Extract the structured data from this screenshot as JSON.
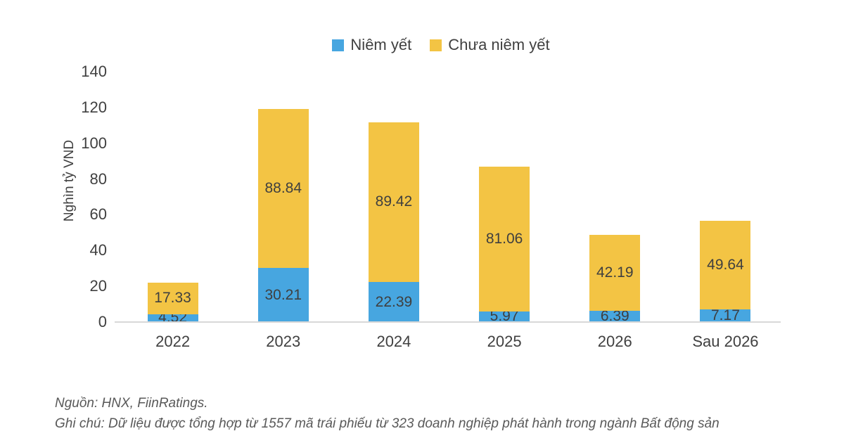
{
  "chart": {
    "legend": [
      {
        "label": "Niêm yết",
        "color": "#47A6E0"
      },
      {
        "label": "Chưa niêm yết",
        "color": "#F3C444"
      }
    ],
    "ylabel": "Nghìn tỷ VND"
  },
  "chart_data": {
    "type": "bar",
    "stacked": true,
    "categories": [
      "2022",
      "2023",
      "2024",
      "2025",
      "2026",
      "Sau 2026"
    ],
    "series": [
      {
        "name": "Niêm yết",
        "color": "#47A6E0",
        "values": [
          4.52,
          30.21,
          22.39,
          5.97,
          6.39,
          7.17
        ]
      },
      {
        "name": "Chưa niêm yết",
        "color": "#F3C444",
        "values": [
          17.33,
          88.84,
          89.42,
          81.06,
          42.19,
          49.64
        ]
      }
    ],
    "title": "",
    "xlabel": "",
    "ylabel": "Nghìn tỷ VND",
    "ylim": [
      0,
      140
    ],
    "yticks": [
      0,
      20,
      40,
      60,
      80,
      100,
      120,
      140
    ],
    "grid": false,
    "legend_position": "top",
    "value_labels": true
  },
  "footer": {
    "source": "Nguồn: HNX, FiinRatings.",
    "note": "Ghi chú: Dữ liệu được tổng hợp từ 1557 mã trái phiếu từ 323 doanh nghiệp phát hành trong ngành Bất động sản"
  }
}
